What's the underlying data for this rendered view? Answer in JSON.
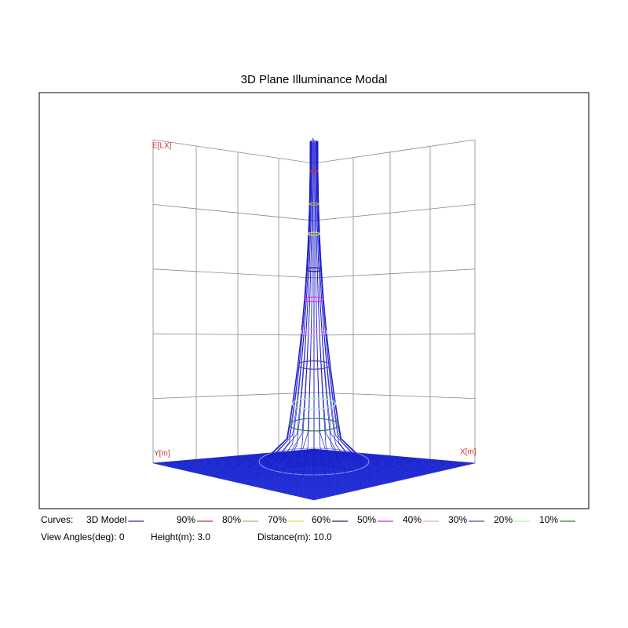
{
  "header": {
    "title": "3D Plane Illuminance Modal"
  },
  "axes": {
    "z_label": "E[LX]",
    "y_label": "Y[m]",
    "x_label": "X[m]"
  },
  "legend": {
    "label": "Curves:",
    "items": [
      {
        "name": "3D Model",
        "color": "#2b2b9a"
      },
      {
        "name": "90%",
        "color": "#c03030"
      },
      {
        "name": "80%",
        "color": "#b8b040"
      },
      {
        "name": "70%",
        "color": "#e0e040"
      },
      {
        "name": "60%",
        "color": "#202080"
      },
      {
        "name": "50%",
        "color": "#e020e0"
      },
      {
        "name": "40%",
        "color": "#e8a0e0"
      },
      {
        "name": "30%",
        "color": "#6040a0"
      },
      {
        "name": "20%",
        "color": "#b0f0b0"
      },
      {
        "name": "10%",
        "color": "#308040"
      }
    ]
  },
  "info": [
    "View Angles(deg): 0",
    "Height(m): 3.0",
    "Distance(m): 10.0"
  ]
}
